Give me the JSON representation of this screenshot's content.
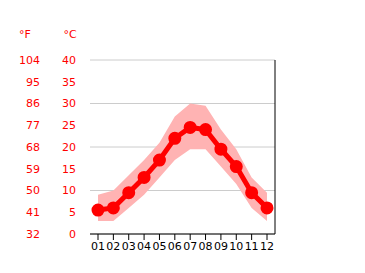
{
  "chart_data": {
    "type": "line",
    "categories": [
      "01",
      "02",
      "03",
      "04",
      "05",
      "06",
      "07",
      "08",
      "09",
      "10",
      "11",
      "12"
    ],
    "y_label": "°C",
    "y2_label": "°F",
    "ylim": [
      0,
      40
    ],
    "yticks": [
      0,
      5,
      10,
      15,
      20,
      25,
      30,
      35,
      40
    ],
    "y2lim": [
      32,
      104
    ],
    "y2ticks": [
      32,
      41,
      50,
      59,
      68,
      77,
      86,
      95,
      104
    ],
    "grid": true,
    "series": [
      {
        "type": "line",
        "color": "#ff0000",
        "marker": "circle",
        "values": [
          5.5,
          6,
          9.5,
          13,
          17,
          22,
          24.5,
          24,
          19.5,
          15.5,
          9.5,
          6
        ]
      },
      {
        "type": "range",
        "color": "#ffb3b3",
        "low": [
          3,
          3,
          6,
          9,
          13,
          17,
          19.5,
          19.5,
          15.5,
          11.5,
          6,
          3
        ],
        "high": [
          9,
          10,
          13.5,
          17,
          21,
          27,
          30,
          29.5,
          24,
          19.5,
          13,
          9.5
        ]
      }
    ]
  }
}
